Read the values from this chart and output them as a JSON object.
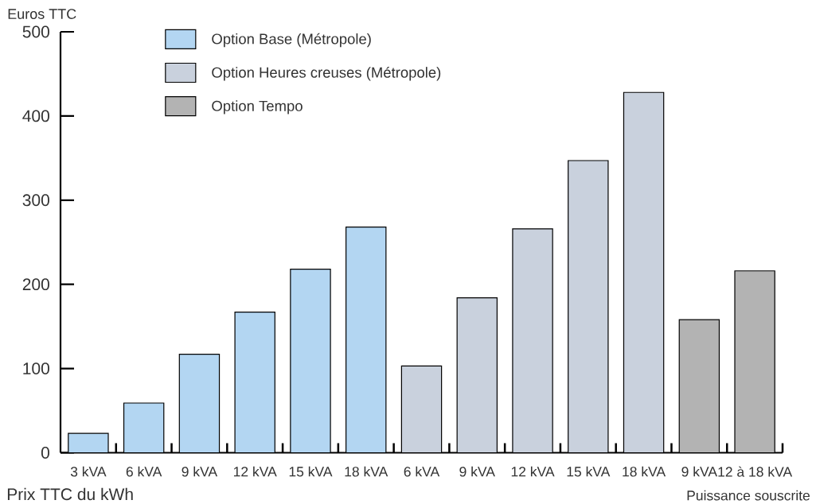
{
  "chart_data": {
    "type": "bar",
    "ylabel": "Euros TTC",
    "xlabel": "Puissance souscrite",
    "categories": [
      "3 kVA",
      "6 kVA",
      "9 kVA",
      "12 kVA",
      "15 kVA",
      "18 kVA",
      "6 kVA",
      "9 kVA",
      "12 kVA",
      "15 kVA",
      "18 kVA",
      "9 kVA",
      "12 à 18 kVA"
    ],
    "series": [
      {
        "name": "Option Base (Métropole)",
        "color": "#b3d6f2",
        "values": [
          23,
          59,
          117,
          167,
          218,
          268,
          null,
          null,
          null,
          null,
          null,
          null,
          null
        ]
      },
      {
        "name": "Option Heures creuses (Métropole)",
        "color": "#c9d1dd",
        "values": [
          null,
          null,
          null,
          null,
          null,
          null,
          103,
          184,
          266,
          347,
          428,
          null,
          null
        ]
      },
      {
        "name": "Option Tempo",
        "color": "#b3b3b3",
        "values": [
          null,
          null,
          null,
          null,
          null,
          null,
          null,
          null,
          null,
          null,
          null,
          158,
          216
        ]
      }
    ],
    "ylim": [
      0,
      500
    ],
    "yticks": [
      0,
      100,
      200,
      300,
      400,
      500
    ],
    "legend": "top left",
    "annotations": [
      "Prix TTC du kWh"
    ]
  }
}
